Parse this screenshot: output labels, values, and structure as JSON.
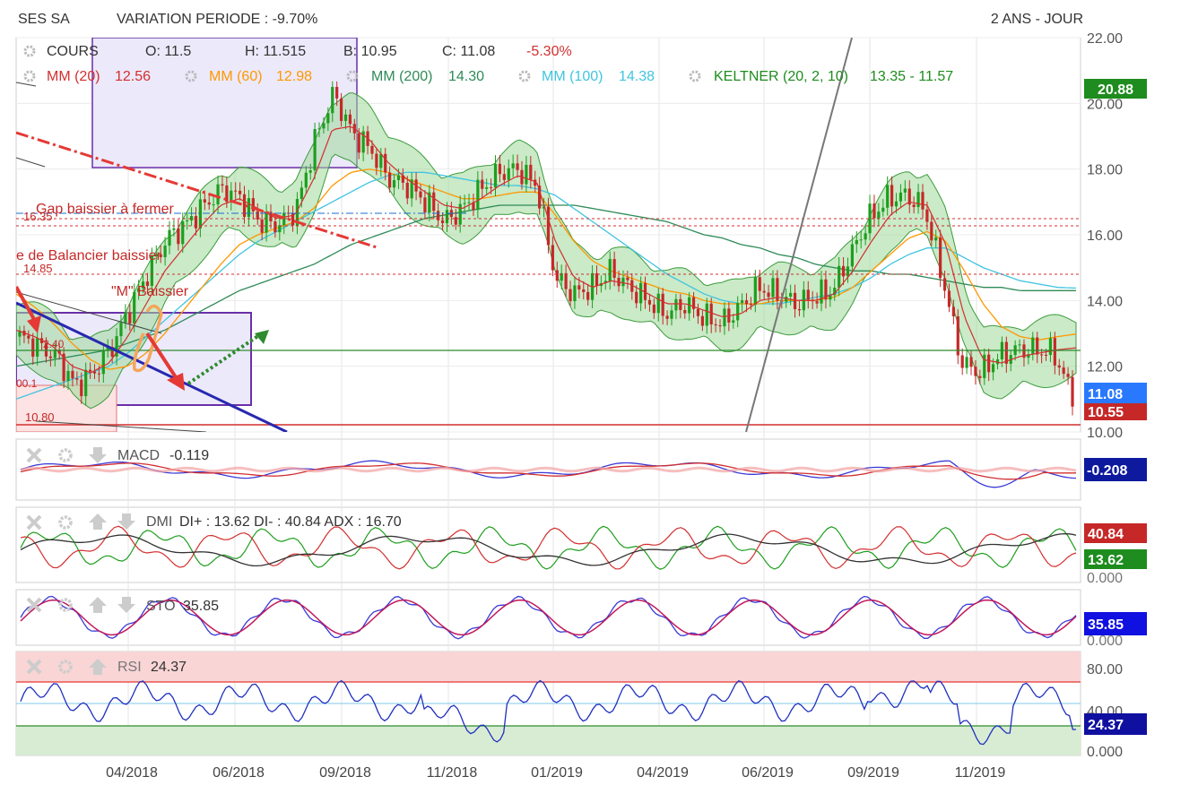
{
  "header": {
    "ticker": "SES SA",
    "variation": "VARIATION PERIODE : -9.70%",
    "period": "2 ANS - JOUR"
  },
  "legend": {
    "cours_label": "COURS",
    "open": "O: 11.5",
    "high": "H: 11.515",
    "low": "B: 10.95",
    "close": "C: 11.08",
    "change": "-5.30%",
    "ma20_label": "MM (20)",
    "ma20_value": "12.56",
    "ma60_label": "MM (60)",
    "ma60_value": "12.98",
    "ma200_label": "MM (200)",
    "ma200_value": "14.30",
    "ma100_label": "MM (100)",
    "ma100_value": "14.38",
    "keltner_label": "KELTNER (20, 2, 10)",
    "keltner_value": "13.35 - 11.57"
  },
  "annotations": {
    "gap": "Gap baissier à fermer",
    "balancier": "e de Balancier baissier",
    "m_baissier": "\"M\" Baissier",
    "level_1635": "16.35",
    "level_1485": "14.85",
    "level_1080": "10.80",
    "cut_left_1": "2.40",
    "cut_left_2": "00.1"
  },
  "colors": {
    "ma20": "#d32f2f",
    "ma60": "#ff9800",
    "ma200": "#2e8b57",
    "ma100": "#40c4e0",
    "keltner": "#1e8c1e",
    "keltner_fill": "#9ed89a",
    "up": "#1e9e1e",
    "down": "#c62828",
    "resist": "#d32f2f",
    "support": "#2e8b2e",
    "blue": "#1a1aa8"
  },
  "panels": {
    "macd": {
      "label": "MACD",
      "value": "-0.119",
      "badge": "-0.208"
    },
    "dmi": {
      "label": "DMI",
      "value": "DI+ : 13.62 DI- : 40.84 ADX : 16.70",
      "badge_neg": "40.84",
      "badge_pos": "13.62",
      "zero": "0.000"
    },
    "sto": {
      "label": "STO",
      "value": "35.85",
      "badge": "35.85",
      "zero": "0.000"
    },
    "rsi": {
      "label": "RSI",
      "value": "24.37",
      "badge": "24.37",
      "t80": "80.00",
      "t40": "40.00",
      "zero": "0.000"
    }
  },
  "price_axis": {
    "ticks": [
      "22.00",
      "20.00",
      "18.00",
      "16.00",
      "14.00",
      "12.00",
      "10.00"
    ],
    "badge_top": "20.88",
    "badge_last": "11.08",
    "badge_support": "10.55"
  },
  "chart_data": {
    "type": "line",
    "title": "",
    "x_labels": [
      "04/2018",
      "06/2018",
      "09/2018",
      "11/2018",
      "01/2019",
      "04/2019",
      "06/2019",
      "09/2019",
      "11/2019"
    ],
    "ylim": [
      10,
      22
    ],
    "series": [
      {
        "name": "COURS",
        "values": [
          12.9,
          12.6,
          12.3,
          11.4,
          11.8,
          12.6,
          13.8,
          14.9,
          15.9,
          16.3,
          16.9,
          17.4,
          17.1,
          16.4,
          16.3,
          16.8,
          18.9,
          20.3,
          19.1,
          18.6,
          17.7,
          17.5,
          17.0,
          16.4,
          16.8,
          17.4,
          17.9,
          18.0,
          17.5,
          14.7,
          14.2,
          14.4,
          14.9,
          14.4,
          14.0,
          13.6,
          13.9,
          13.5,
          13.3,
          13.8,
          14.4,
          14.2,
          13.9,
          14.1,
          14.3,
          15.4,
          16.5,
          17.1,
          17.2,
          16.8,
          14.6,
          12.1,
          11.8,
          12.3,
          12.5,
          12.5,
          12.4,
          11.08
        ]
      },
      {
        "name": "MM (20)",
        "values": [
          13.1,
          12.9,
          12.6,
          12.0,
          11.8,
          12.1,
          12.9,
          13.9,
          14.9,
          15.6,
          16.3,
          16.9,
          17.1,
          16.8,
          16.5,
          16.6,
          17.7,
          19.2,
          19.3,
          18.9,
          18.2,
          17.7,
          17.3,
          16.9,
          16.8,
          17.1,
          17.5,
          17.8,
          17.6,
          15.8,
          14.7,
          14.4,
          14.6,
          14.5,
          14.2,
          13.9,
          13.9,
          13.7,
          13.5,
          13.6,
          14.0,
          14.1,
          14.0,
          14.0,
          14.2,
          14.9,
          15.8,
          16.6,
          17.0,
          16.9,
          15.7,
          13.5,
          12.2,
          12.1,
          12.3,
          12.4,
          12.5,
          12.56
        ]
      },
      {
        "name": "MM (60)",
        "values": [
          14.2,
          13.8,
          13.3,
          12.7,
          12.2,
          11.9,
          12.0,
          12.4,
          13.0,
          13.7,
          14.4,
          15.1,
          15.7,
          16.0,
          16.2,
          16.4,
          16.8,
          17.5,
          17.9,
          18.0,
          17.9,
          17.7,
          17.5,
          17.3,
          17.1,
          17.1,
          17.2,
          17.3,
          17.3,
          16.6,
          15.8,
          15.2,
          14.9,
          14.7,
          14.5,
          14.3,
          14.2,
          14.0,
          13.9,
          13.9,
          13.9,
          14.0,
          14.0,
          14.0,
          14.1,
          14.4,
          14.9,
          15.4,
          15.9,
          16.1,
          15.8,
          14.9,
          13.9,
          13.2,
          12.9,
          12.8,
          12.9,
          12.98
        ]
      },
      {
        "name": "MM (100)",
        "values": [
          11.0,
          11.2,
          11.4,
          11.6,
          11.8,
          12.0,
          12.4,
          12.9,
          13.4,
          13.9,
          14.4,
          14.9,
          15.4,
          15.8,
          16.1,
          16.4,
          16.7,
          17.0,
          17.3,
          17.6,
          17.8,
          17.9,
          17.9,
          17.8,
          17.7,
          17.6,
          17.5,
          17.5,
          17.4,
          17.2,
          16.8,
          16.4,
          16.0,
          15.6,
          15.2,
          14.8,
          14.5,
          14.2,
          14.0,
          13.9,
          13.9,
          13.9,
          14.0,
          14.1,
          14.2,
          14.4,
          14.7,
          15.1,
          15.4,
          15.6,
          15.6,
          15.3,
          15.0,
          14.8,
          14.6,
          14.5,
          14.4,
          14.38
        ]
      },
      {
        "name": "MM (200)",
        "values": [
          12.0,
          12.1,
          12.2,
          12.3,
          12.4,
          12.5,
          12.7,
          12.9,
          13.1,
          13.4,
          13.7,
          14.0,
          14.3,
          14.5,
          14.7,
          14.9,
          15.1,
          15.4,
          15.7,
          15.9,
          16.1,
          16.3,
          16.5,
          16.6,
          16.7,
          16.8,
          16.9,
          16.9,
          16.9,
          16.9,
          16.9,
          16.8,
          16.7,
          16.6,
          16.5,
          16.4,
          16.2,
          16.0,
          15.9,
          15.7,
          15.6,
          15.4,
          15.3,
          15.1,
          15.0,
          14.9,
          14.9,
          14.8,
          14.8,
          14.7,
          14.6,
          14.5,
          14.4,
          14.4,
          14.3,
          14.3,
          14.3,
          14.3
        ]
      }
    ],
    "levels": [
      16.5,
      16.35,
      14.85,
      12.3,
      9.95
    ],
    "grid": true
  }
}
